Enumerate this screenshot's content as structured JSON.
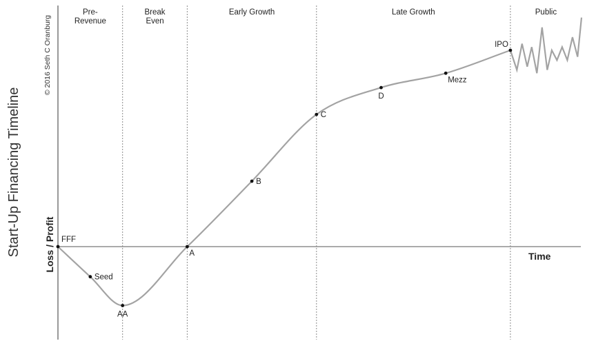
{
  "chart_data": {
    "type": "line",
    "title": "Start-Up Financing Timeline",
    "copyright": "© 2016 Seth C Oranburg",
    "xlabel": "Time",
    "ylabel": "Loss / Profit",
    "phases": [
      {
        "label_lines": [
          "Pre-",
          "Revenue"
        ],
        "start": 0,
        "end": 1
      },
      {
        "label_lines": [
          "Break",
          "Even"
        ],
        "start": 1,
        "end": 2
      },
      {
        "label_lines": [
          "Early Growth"
        ],
        "start": 2,
        "end": 4
      },
      {
        "label_lines": [
          "Late Growth"
        ],
        "start": 4,
        "end": 7
      },
      {
        "label_lines": [
          "Public"
        ],
        "start": 7,
        "end": 8.1
      }
    ],
    "milestones": [
      {
        "label": "FFF",
        "x": 0,
        "y": 0,
        "label_pos": "upper-right"
      },
      {
        "label": "Seed",
        "x": 0.5,
        "y": -0.46,
        "label_pos": "right"
      },
      {
        "label": "AA",
        "x": 1,
        "y": -0.9,
        "label_pos": "below"
      },
      {
        "label": "A",
        "x": 2,
        "y": 0,
        "label_pos": "below-right"
      },
      {
        "label": "B",
        "x": 3,
        "y": 1,
        "label_pos": "right"
      },
      {
        "label": "C",
        "x": 4,
        "y": 2.02,
        "label_pos": "right"
      },
      {
        "label": "D",
        "x": 5,
        "y": 2.43,
        "label_pos": "below"
      },
      {
        "label": "Mezz",
        "x": 6,
        "y": 2.65,
        "label_pos": "below-right"
      },
      {
        "label": "IPO",
        "x": 7,
        "y": 3.0,
        "label_pos": "upper-left"
      }
    ],
    "public_series": [
      [
        7.0,
        3.0
      ],
      [
        7.1,
        2.7
      ],
      [
        7.18,
        3.1
      ],
      [
        7.26,
        2.75
      ],
      [
        7.33,
        3.05
      ],
      [
        7.41,
        2.65
      ],
      [
        7.49,
        3.35
      ],
      [
        7.57,
        2.7
      ],
      [
        7.64,
        3.0
      ],
      [
        7.72,
        2.85
      ],
      [
        7.8,
        3.05
      ],
      [
        7.88,
        2.85
      ],
      [
        7.96,
        3.2
      ],
      [
        8.04,
        2.9
      ],
      [
        8.1,
        3.5
      ]
    ],
    "xlim": [
      0,
      8.1
    ],
    "ylim": [
      -1.35,
      3.75
    ],
    "grid": false,
    "line_color": "#a3a3a3",
    "point_color": "#111111"
  }
}
